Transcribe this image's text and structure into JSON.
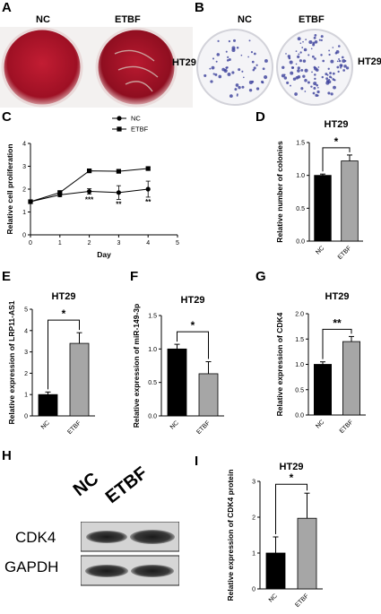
{
  "panels": {
    "A": {
      "label": "A",
      "col_nc": "NC",
      "col_etbf": "ETBF",
      "cell_line": "HT29"
    },
    "B": {
      "label": "B",
      "col_nc": "NC",
      "col_etbf": "ETBF",
      "cell_line": "HT29"
    },
    "C": {
      "label": "C"
    },
    "D": {
      "label": "D",
      "title": "HT29",
      "ylabel": "Relative number of colonies"
    },
    "E": {
      "label": "E",
      "title": "HT29",
      "ylabel": "Relative expression of LRP11-AS1"
    },
    "F": {
      "label": "F",
      "title": "HT29",
      "ylabel": "Relative expression of miR-149-3p"
    },
    "G": {
      "label": "G",
      "title": "HT29",
      "ylabel": "Relative expression of CDK4"
    },
    "H": {
      "label": "H",
      "col_nc": "NC",
      "col_etbf": "ETBF",
      "row1": "CDK4",
      "row2": "GAPDH"
    },
    "I": {
      "label": "I",
      "title": "HT29",
      "ylabel": "Relative expression of CDK4 protein"
    }
  },
  "colors": {
    "nc_bar": "#000000",
    "etbf_bar": "#a6a6a6",
    "plate_red": "#b3122a",
    "colony_blue": "#3a3f9a"
  },
  "chart_data": [
    {
      "id": "C",
      "type": "line",
      "xlabel": "Day",
      "ylabel": "Relative cell proliferation",
      "xlim": [
        0,
        5
      ],
      "ylim": [
        0,
        4
      ],
      "xticks": [
        "0",
        "1",
        "2",
        "3",
        "4",
        "5"
      ],
      "yticks": [
        "0",
        "1",
        "2",
        "3",
        "4"
      ],
      "legend": "top-right",
      "series": [
        {
          "name": "NC",
          "x": [
            0,
            1,
            2,
            3,
            4
          ],
          "y": [
            1.45,
            1.75,
            1.9,
            1.85,
            2.0
          ],
          "err": [
            0,
            0.08,
            0.12,
            0.3,
            0.35
          ],
          "marker": "circle"
        },
        {
          "name": "ETBF",
          "x": [
            0,
            1,
            2,
            3,
            4
          ],
          "y": [
            1.45,
            1.85,
            2.8,
            2.78,
            2.9
          ],
          "err": [
            0,
            0.06,
            0.05,
            0.07,
            0.06
          ],
          "marker": "square"
        }
      ],
      "annotations": [
        {
          "x": 2,
          "y": 1.55,
          "text": "***"
        },
        {
          "x": 3,
          "y": 1.35,
          "text": "**"
        },
        {
          "x": 4,
          "y": 1.45,
          "text": "**"
        }
      ]
    },
    {
      "id": "D",
      "type": "bar",
      "categories": [
        "NC",
        "ETBF"
      ],
      "values": [
        1.0,
        1.22
      ],
      "err": [
        0.02,
        0.09
      ],
      "ylim": [
        0,
        1.5
      ],
      "yticks": [
        "0.0",
        "0.5",
        "1.0",
        "1.5"
      ],
      "sig": "*"
    },
    {
      "id": "E",
      "type": "bar",
      "categories": [
        "NC",
        "ETBF"
      ],
      "values": [
        1.0,
        3.4
      ],
      "err": [
        0.12,
        0.5
      ],
      "ylim": [
        0,
        5
      ],
      "yticks": [
        "0",
        "1",
        "2",
        "3",
        "4",
        "5"
      ],
      "sig": "*"
    },
    {
      "id": "F",
      "type": "bar",
      "categories": [
        "NC",
        "ETBF"
      ],
      "values": [
        1.0,
        0.63
      ],
      "err": [
        0.07,
        0.18
      ],
      "ylim": [
        0,
        1.5
      ],
      "yticks": [
        "0.0",
        "0.5",
        "1.0",
        "1.5"
      ],
      "sig": "*"
    },
    {
      "id": "G",
      "type": "bar",
      "categories": [
        "NC",
        "ETBF"
      ],
      "values": [
        1.0,
        1.45
      ],
      "err": [
        0.05,
        0.1
      ],
      "ylim": [
        0,
        2.0
      ],
      "yticks": [
        "0.0",
        "0.5",
        "1.0",
        "1.5",
        "2.0"
      ],
      "sig": "**"
    },
    {
      "id": "I",
      "type": "bar",
      "categories": [
        "NC",
        "ETBF"
      ],
      "values": [
        1.0,
        1.97
      ],
      "err": [
        0.45,
        0.7
      ],
      "ylim": [
        0,
        3
      ],
      "yticks": [
        "0",
        "1",
        "2",
        "3"
      ],
      "sig": "*"
    }
  ]
}
